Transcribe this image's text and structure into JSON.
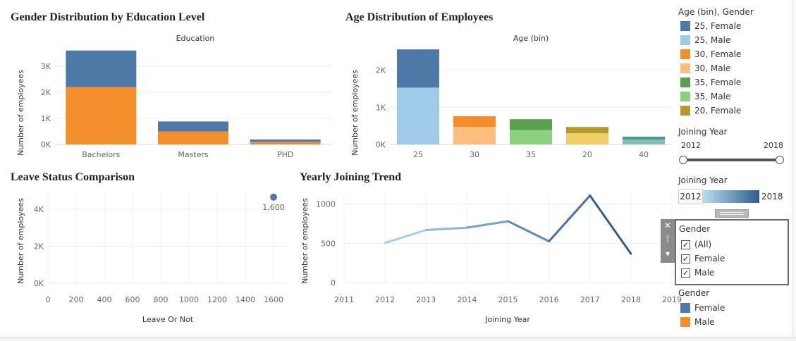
{
  "charts": {
    "education": {
      "title": "Gender Distribution by Education Level",
      "column_header": "Education",
      "ylabel": "Number of employees"
    },
    "age": {
      "title": "Age Distribution of Employees",
      "column_header": "Age (bin)",
      "ylabel": "Number of employees"
    },
    "leave": {
      "title": "Leave Status Comparison",
      "xlabel": "Leave Or Not",
      "ylabel": "Number of employees"
    },
    "joining": {
      "title": "Yearly Joining Trend",
      "xlabel": "Joining Year",
      "ylabel": "Number of employees"
    }
  },
  "chart_data": [
    {
      "type": "bar",
      "stacked": true,
      "title": "Gender Distribution by Education Level",
      "xlabel": "Education",
      "ylabel": "Number of employees",
      "categories": [
        "Bachelors",
        "Masters",
        "PHD"
      ],
      "series": [
        {
          "name": "Male",
          "values": [
            2200,
            500,
            100
          ],
          "color": "#f28e2b"
        },
        {
          "name": "Female",
          "values": [
            1400,
            380,
            90
          ],
          "color": "#4e79a7"
        }
      ],
      "yticks": [
        "0K",
        "1K",
        "2K",
        "3K"
      ],
      "ylim": [
        0,
        3700
      ],
      "grid": true
    },
    {
      "type": "bar",
      "stacked": true,
      "title": "Age Distribution of Employees",
      "xlabel": "Age (bin)",
      "ylabel": "Number of employees",
      "categories": [
        "25",
        "30",
        "35",
        "20",
        "40"
      ],
      "stacks": [
        [
          {
            "name": "25, Male",
            "value": 1530,
            "color": "#a0cbe8"
          },
          {
            "name": "25, Female",
            "value": 1030,
            "color": "#4e79a7"
          }
        ],
        [
          {
            "name": "30, Male",
            "value": 470,
            "color": "#ffbe7d"
          },
          {
            "name": "30, Female",
            "value": 290,
            "color": "#f28e2b"
          }
        ],
        [
          {
            "name": "35, Male",
            "value": 390,
            "color": "#8cd17d"
          },
          {
            "name": "35, Female",
            "value": 290,
            "color": "#59a14f"
          }
        ],
        [
          {
            "name": "20, Male",
            "value": 300,
            "color": "#f1ce63"
          },
          {
            "name": "20, Female",
            "value": 170,
            "color": "#b6992d"
          }
        ],
        [
          {
            "name": "40, Male",
            "value": 130,
            "color": "#86bcb6"
          },
          {
            "name": "40, Female",
            "value": 80,
            "color": "#499894"
          }
        ]
      ],
      "yticks": [
        "0K",
        "1K",
        "2K"
      ],
      "ylim": [
        0,
        2600
      ],
      "grid": true
    },
    {
      "type": "scatter",
      "title": "Leave Status Comparison",
      "xlabel": "Leave Or Not",
      "ylabel": "Number of employees",
      "points": [
        {
          "x": 1600,
          "y": 4653,
          "label": "1,600"
        }
      ],
      "x_ticks": [
        "0",
        "200",
        "400",
        "600",
        "800",
        "1000",
        "1200",
        "1400",
        "1600"
      ],
      "yticks": [
        "0K",
        "2K",
        "4K"
      ],
      "xlim": [
        0,
        1700
      ],
      "ylim": [
        0,
        4950
      ],
      "color": "#4e79a7",
      "grid": true
    },
    {
      "type": "line",
      "title": "Yearly Joining Trend",
      "xlabel": "Joining Year",
      "ylabel": "Number of employees",
      "x": [
        2012,
        2013,
        2014,
        2015,
        2016,
        2017,
        2018
      ],
      "values": [
        504,
        669,
        699,
        781,
        525,
        1108,
        367
      ],
      "x_ticks": [
        "2011",
        "2012",
        "2013",
        "2014",
        "2015",
        "2016",
        "2017",
        "2018",
        "2019"
      ],
      "yticks": [
        "0",
        "500",
        "1000"
      ],
      "xlim": [
        2011,
        2019
      ],
      "ylim": [
        0,
        1140
      ],
      "color_gradient": [
        "#a6cfea",
        "#2e5c8c"
      ],
      "grid": true
    }
  ],
  "sidebar": {
    "color_legend": {
      "title": "Age (bin), Gender",
      "items": [
        {
          "label": "25, Female",
          "color": "#4e79a7"
        },
        {
          "label": "25, Male",
          "color": "#a0cbe8"
        },
        {
          "label": "30, Female",
          "color": "#f28e2b"
        },
        {
          "label": "30, Male",
          "color": "#ffbe7d"
        },
        {
          "label": "35, Female",
          "color": "#59a14f"
        },
        {
          "label": "35, Male",
          "color": "#8cd17d"
        },
        {
          "label": "20, Female",
          "color": "#b6992d"
        }
      ]
    },
    "year_slider": {
      "title": "Joining Year",
      "min_label": "2012",
      "max_label": "2018",
      "low_fraction": 0.0,
      "high_fraction": 1.0
    },
    "year_gradient": {
      "title": "Joining Year",
      "min_label": "2012",
      "max_label": "2018",
      "colors": [
        "#b9dcf0",
        "#2e5c8c"
      ]
    },
    "gender_filter": {
      "title": "Gender",
      "options": [
        {
          "label": "(All)",
          "checked": true
        },
        {
          "label": "Female",
          "checked": true
        },
        {
          "label": "Male",
          "checked": true
        }
      ],
      "tools": {
        "close": "✕",
        "pin": "⍑",
        "menu": "▾"
      }
    },
    "gender_legend": {
      "title": "Gender",
      "items": [
        {
          "label": "Female",
          "color": "#4e79a7"
        },
        {
          "label": "Male",
          "color": "#f28e2b"
        }
      ]
    }
  }
}
